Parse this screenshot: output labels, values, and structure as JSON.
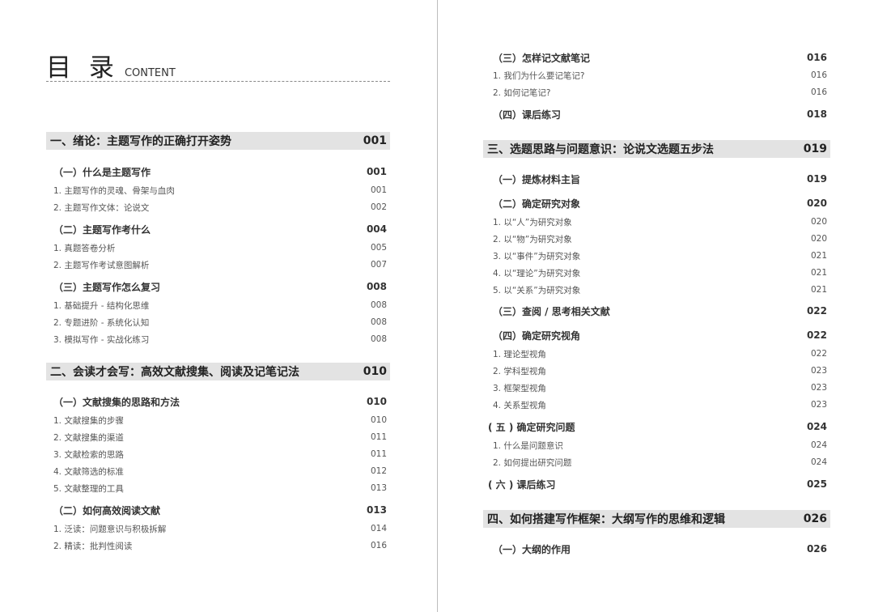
{
  "header": {
    "title": "目 录",
    "subtitle": "CONTENT"
  },
  "left_page": {
    "entries": [
      {
        "type": "chapter",
        "title": "一、绪论：主题写作的正确打开姿势",
        "page": "001"
      },
      {
        "type": "section",
        "title": "（一）什么是主题写作",
        "page": "001"
      },
      {
        "type": "item",
        "title": "1. 主题写作的灵魂、骨架与血肉",
        "page": "001"
      },
      {
        "type": "item",
        "title": "2. 主题写作文体：论说文",
        "page": "002"
      },
      {
        "type": "section",
        "title": "（二）主题写作考什么",
        "page": "004"
      },
      {
        "type": "item",
        "title": "1. 真题答卷分析",
        "page": "005"
      },
      {
        "type": "item",
        "title": "2. 主题写作考试意图解析",
        "page": "007"
      },
      {
        "type": "section",
        "title": "（三）主题写作怎么复习",
        "page": "008"
      },
      {
        "type": "item",
        "title": "1. 基础提升 - 结构化思维",
        "page": "008"
      },
      {
        "type": "item",
        "title": "2. 专题进阶 - 系统化认知",
        "page": "008"
      },
      {
        "type": "item",
        "title": "3. 模拟写作 - 实战化练习",
        "page": "008"
      },
      {
        "type": "chapter",
        "title": "二、会读才会写：高效文献搜集、阅读及记笔记法",
        "page": "010"
      },
      {
        "type": "section",
        "title": "（一）文献搜集的思路和方法",
        "page": "010"
      },
      {
        "type": "item",
        "title": "1. 文献搜集的步骤",
        "page": "010"
      },
      {
        "type": "item",
        "title": "2. 文献搜集的渠道",
        "page": "011"
      },
      {
        "type": "item",
        "title": "3. 文献检索的思路",
        "page": "011"
      },
      {
        "type": "item",
        "title": "4. 文献筛选的标准",
        "page": "012"
      },
      {
        "type": "item",
        "title": "5. 文献整理的工具",
        "page": "013"
      },
      {
        "type": "section",
        "title": "（二）如何高效阅读文献",
        "page": "013"
      },
      {
        "type": "item",
        "title": "1. 泛读：问题意识与积极拆解",
        "page": "014"
      },
      {
        "type": "item",
        "title": "2. 精读：批判性阅读",
        "page": "016"
      }
    ]
  },
  "right_page": {
    "entries": [
      {
        "type": "section",
        "title": "（三）怎样记文献笔记",
        "page": "016"
      },
      {
        "type": "item",
        "title": "1. 我们为什么要记笔记?",
        "page": "016"
      },
      {
        "type": "item",
        "title": "2. 如何记笔记?",
        "page": "016"
      },
      {
        "type": "section",
        "title": "（四）课后练习",
        "page": "018"
      },
      {
        "type": "chapter",
        "title": "三、选题思路与问题意识：论说文选题五步法",
        "page": "019"
      },
      {
        "type": "section",
        "title": "（一）提炼材料主旨",
        "page": "019"
      },
      {
        "type": "section",
        "title": "（二）确定研究对象",
        "page": "020"
      },
      {
        "type": "item",
        "title": "1. 以“人”为研究对象",
        "page": "020"
      },
      {
        "type": "item",
        "title": "2. 以“物”为研究对象",
        "page": "020"
      },
      {
        "type": "item",
        "title": "3. 以“事件”为研究对象",
        "page": "021"
      },
      {
        "type": "item",
        "title": "4. 以“理论”为研究对象",
        "page": "021"
      },
      {
        "type": "item",
        "title": "5. 以“关系”为研究对象",
        "page": "021"
      },
      {
        "type": "section",
        "title": "（三）查阅 / 思考相关文献",
        "page": "022"
      },
      {
        "type": "section",
        "title": "（四）确定研究视角",
        "page": "022"
      },
      {
        "type": "item",
        "title": "1. 理论型视角",
        "page": "022"
      },
      {
        "type": "item",
        "title": "2. 学科型视角",
        "page": "023"
      },
      {
        "type": "item",
        "title": "3. 框架型视角",
        "page": "023"
      },
      {
        "type": "item",
        "title": "4. 关系型视角",
        "page": "023"
      },
      {
        "type": "section",
        "title": "( 五 ) 确定研究问题",
        "page": "024"
      },
      {
        "type": "item",
        "title": "1. 什么是问题意识",
        "page": "024"
      },
      {
        "type": "item",
        "title": "2. 如何提出研究问题",
        "page": "024"
      },
      {
        "type": "section",
        "title": "( 六 ) 课后练习",
        "page": "025"
      },
      {
        "type": "chapter",
        "title": "四、如何搭建写作框架：大纲写作的思维和逻辑",
        "page": "026"
      },
      {
        "type": "section",
        "title": "（一）大纲的作用",
        "page": "026"
      }
    ]
  }
}
